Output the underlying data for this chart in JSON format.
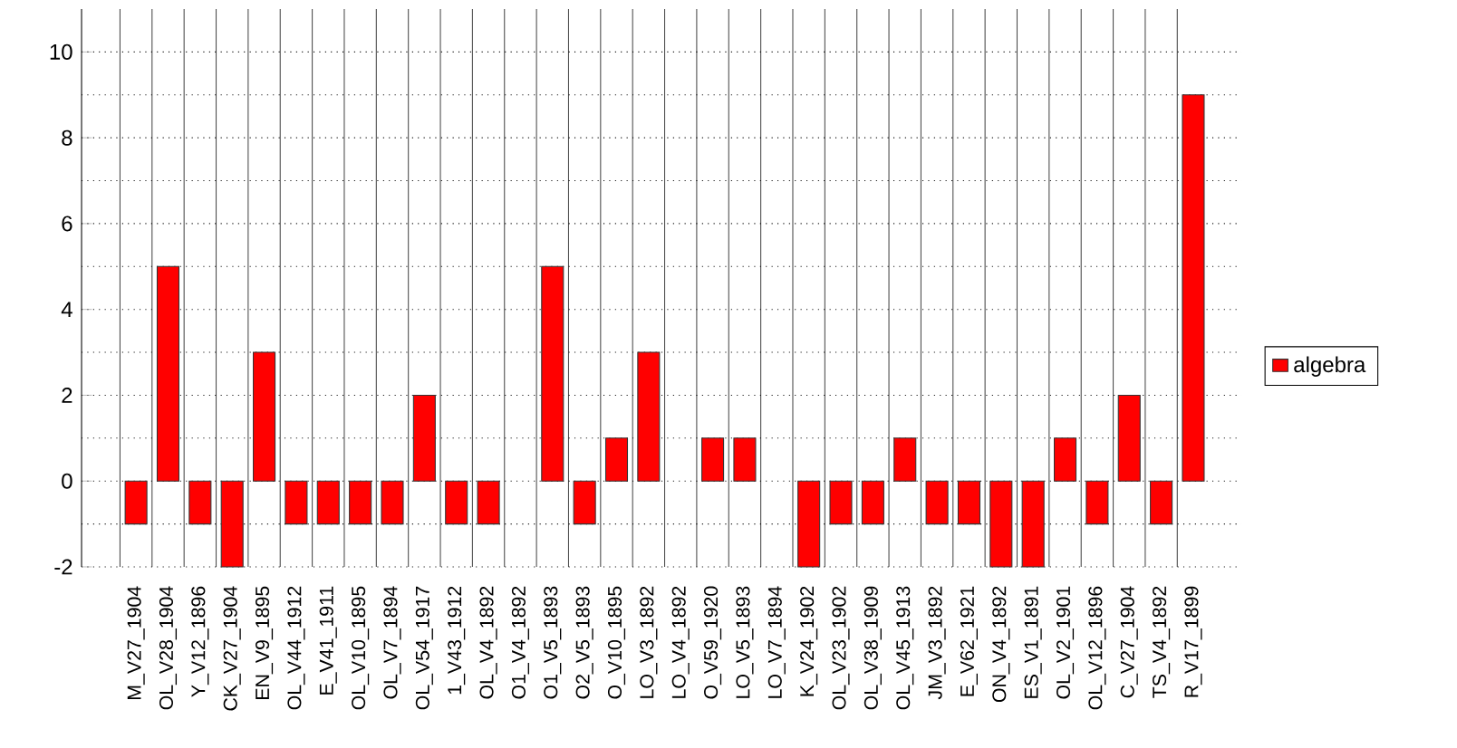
{
  "chart_data": {
    "type": "bar",
    "categories": [
      "M_V27_1904",
      "OL_V28_1904",
      "Y_V12_1896",
      "CK_V27_1904",
      "EN_V9_1895",
      "OL_V44_1912",
      "E_V41_1911",
      "OL_V10_1895",
      "OL_V7_1894",
      "OL_V54_1917",
      "1_V43_1912",
      "OL_V4_1892",
      "O1_V4_1892",
      "O1_V5_1893",
      "O2_V5_1893",
      "O_V10_1895",
      "LO_V3_1892",
      "LO_V4_1892",
      "O_V59_1920",
      "LO_V5_1893",
      "LO_V7_1894",
      "K_V24_1902",
      "OL_V23_1902",
      "OL_V38_1909",
      "OL_V45_1913",
      "JM_V3_1892",
      "E_V62_1921",
      "ON_V4_1892",
      "ES_V1_1891",
      "OL_V2_1901",
      "OL_V12_1896",
      "C_V27_1904",
      "TS_V4_1892",
      "R_V17_1899"
    ],
    "series": [
      {
        "name": "algebra",
        "color": "#ff0000",
        "values": [
          -1,
          5,
          -1,
          -2,
          3,
          -1,
          -1,
          -1,
          -1,
          2,
          -1,
          -1,
          null,
          5,
          -1,
          1,
          3,
          null,
          1,
          1,
          null,
          -2,
          -1,
          -1,
          1,
          -1,
          -1,
          -2,
          -2,
          1,
          -1,
          2,
          -1,
          9
        ]
      }
    ],
    "ylim": [
      -2,
      11
    ],
    "yticks": [
      -2,
      0,
      2,
      4,
      6,
      8,
      10
    ],
    "grid": true,
    "legend": "right"
  }
}
